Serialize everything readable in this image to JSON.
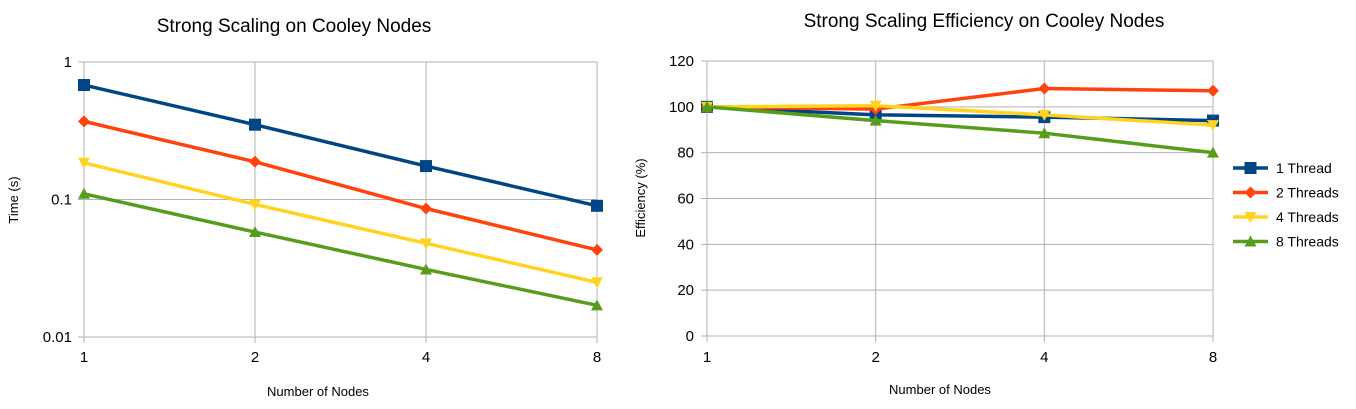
{
  "chart_data": [
    {
      "type": "line",
      "title": "Strong Scaling on Cooley Nodes",
      "xlabel": "Number of Nodes",
      "ylabel": "Time (s)",
      "yscale": "log",
      "ylim": [
        0.01,
        1
      ],
      "ytick_labels": [
        "1",
        "0.1",
        "0.01"
      ],
      "ytick_values": [
        1,
        0.1,
        0.01
      ],
      "grid": true,
      "categories": [
        "1",
        "2",
        "4",
        "8"
      ],
      "series": [
        {
          "name": "1 Thread",
          "values": [
            0.68,
            0.35,
            0.175,
            0.09
          ],
          "color": "#004586",
          "marker": "square"
        },
        {
          "name": "2 Threads",
          "values": [
            0.37,
            0.188,
            0.086,
            0.043
          ],
          "color": "#ff420e",
          "marker": "diamond"
        },
        {
          "name": "4 Threads",
          "values": [
            0.185,
            0.092,
            0.048,
            0.025
          ],
          "color": "#ffd320",
          "marker": "triangle-down"
        },
        {
          "name": "8 Threads",
          "values": [
            0.11,
            0.058,
            0.031,
            0.017
          ],
          "color": "#579d1c",
          "marker": "triangle-up"
        }
      ]
    },
    {
      "type": "line",
      "title": "Strong Scaling Efficiency on Cooley Nodes",
      "xlabel": "Number of Nodes",
      "ylabel": "Efficiency (%)",
      "ylim": [
        0,
        120
      ],
      "ytick_labels": [
        "120",
        "100",
        "80",
        "60",
        "40",
        "20",
        "0"
      ],
      "ytick_values": [
        120,
        100,
        80,
        60,
        40,
        20,
        0
      ],
      "grid": true,
      "legend": "right",
      "categories": [
        "1",
        "2",
        "4",
        "8"
      ],
      "series": [
        {
          "name": "1 Thread",
          "values": [
            100,
            96.5,
            95.5,
            94
          ],
          "color": "#004586",
          "marker": "square"
        },
        {
          "name": "2 Threads",
          "values": [
            100,
            99,
            108,
            107
          ],
          "color": "#ff420e",
          "marker": "diamond"
        },
        {
          "name": "4 Threads",
          "values": [
            100,
            100.5,
            96.5,
            92
          ],
          "color": "#ffd320",
          "marker": "triangle-down"
        },
        {
          "name": "8 Threads",
          "values": [
            100,
            94,
            88.5,
            80
          ],
          "color": "#579d1c",
          "marker": "triangle-up"
        }
      ]
    }
  ]
}
